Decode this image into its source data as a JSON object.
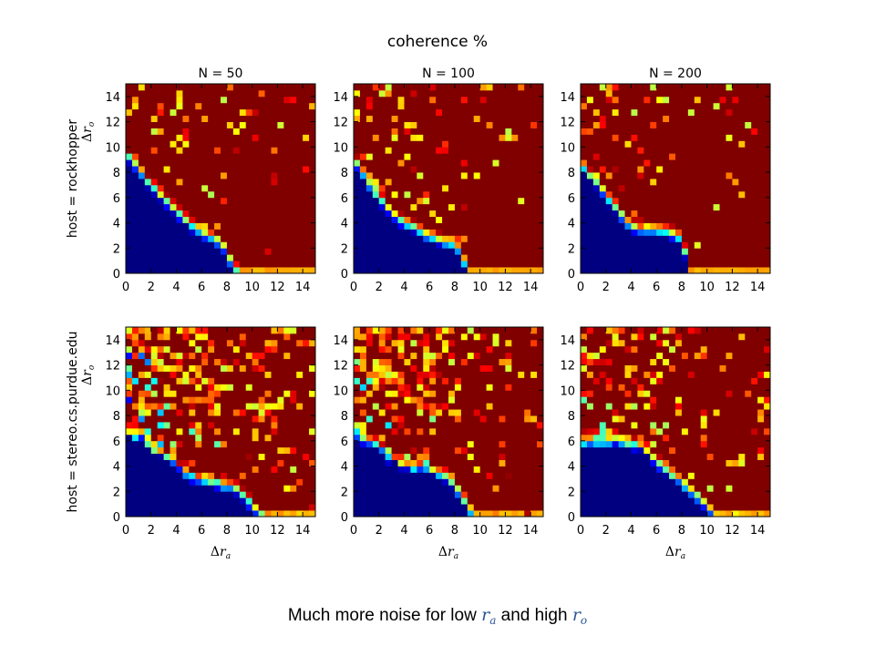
{
  "suptitle": "coherence %",
  "caption": {
    "text_before": "Much more noise for low ",
    "var1": "r",
    "var1_sub": "a",
    "text_middle": " and high ",
    "var2": "r",
    "var2_sub": "o"
  },
  "colors": {
    "colormap": "jet",
    "low": "#00007f",
    "high": "#7f0000",
    "caption_var": "#2f5597"
  },
  "axes_common": {
    "xticks": [
      0,
      2,
      4,
      6,
      8,
      10,
      12,
      14
    ],
    "yticks": [
      0,
      2,
      4,
      6,
      8,
      10,
      12,
      14
    ],
    "xlim": [
      0,
      15
    ],
    "ylim": [
      0,
      15
    ],
    "grid_resolution": 0.5,
    "xlabel_symbol": "Δr",
    "xlabel_sub": "a",
    "ylabel_symbol": "Δr",
    "ylabel_sub": "o"
  },
  "chart_data": [
    {
      "type": "heatmap",
      "row": 0,
      "col": 0,
      "title": "N = 50",
      "row_label": "host = rockhopper",
      "boundary": {
        "x": [
          0,
          1,
          2,
          3,
          4,
          5,
          6,
          7,
          7.5,
          8,
          8.3,
          8.6,
          9,
          15
        ],
        "y": [
          9.5,
          8.2,
          7.0,
          6.0,
          5.0,
          4.0,
          3.3,
          2.8,
          2.4,
          1.8,
          1.0,
          0.5,
          0,
          0
        ]
      },
      "noise": 0.28,
      "seed": 11
    },
    {
      "type": "heatmap",
      "row": 0,
      "col": 1,
      "title": "N = 100",
      "row_label": "",
      "boundary": {
        "x": [
          0,
          1,
          2,
          3,
          4,
          5,
          6,
          7,
          8,
          8.6,
          9.1,
          15
        ],
        "y": [
          9.2,
          7.6,
          6.0,
          4.9,
          4.0,
          3.6,
          3.0,
          2.6,
          2.4,
          1.4,
          0,
          0
        ]
      },
      "noise": 0.26,
      "seed": 23
    },
    {
      "type": "heatmap",
      "row": 0,
      "col": 2,
      "title": "N = 200",
      "row_label": "",
      "boundary": {
        "x": [
          0,
          1,
          2,
          3,
          3.6,
          4,
          6,
          7,
          7.7,
          8.2,
          8.7,
          15
        ],
        "y": [
          8.6,
          7.6,
          6.2,
          5.0,
          4.2,
          3.7,
          3.5,
          3.3,
          3.0,
          2.0,
          0,
          0
        ]
      },
      "noise": 0.22,
      "seed": 37
    },
    {
      "type": "heatmap",
      "row": 1,
      "col": 0,
      "title": "",
      "row_label": "host = stereo.cs.purdue.edu",
      "boundary": {
        "x": [
          0,
          1,
          2,
          3,
          4,
          5,
          6,
          7,
          8,
          9,
          10,
          10.5,
          11,
          15
        ],
        "y": [
          7.0,
          6.4,
          5.8,
          5.0,
          4.2,
          3.4,
          3.0,
          2.8,
          2.6,
          2.0,
          1.0,
          0.4,
          0,
          0
        ]
      },
      "noise": 0.9,
      "seed": 51
    },
    {
      "type": "heatmap",
      "row": 1,
      "col": 1,
      "title": "",
      "row_label": "",
      "boundary": {
        "x": [
          0,
          1,
          2,
          3,
          4,
          5,
          6,
          7,
          8,
          8.6,
          9.0,
          9.6,
          15
        ],
        "y": [
          6.8,
          6.4,
          5.6,
          4.8,
          4.2,
          4.0,
          3.8,
          3.4,
          2.6,
          1.6,
          0.8,
          0,
          0
        ]
      },
      "noise": 0.65,
      "seed": 67
    },
    {
      "type": "heatmap",
      "row": 1,
      "col": 2,
      "title": "",
      "row_label": "",
      "boundary": {
        "x": [
          0,
          1,
          2,
          3,
          4,
          4.6,
          5.5,
          6.5,
          7.5,
          8.5,
          9.5,
          10.2,
          10.8,
          15
        ],
        "y": [
          6.2,
          6.2,
          6.1,
          6.0,
          6.0,
          5.8,
          5.0,
          4.0,
          3.2,
          2.4,
          1.4,
          0.6,
          0,
          0
        ]
      },
      "noise": 0.55,
      "seed": 83
    }
  ]
}
